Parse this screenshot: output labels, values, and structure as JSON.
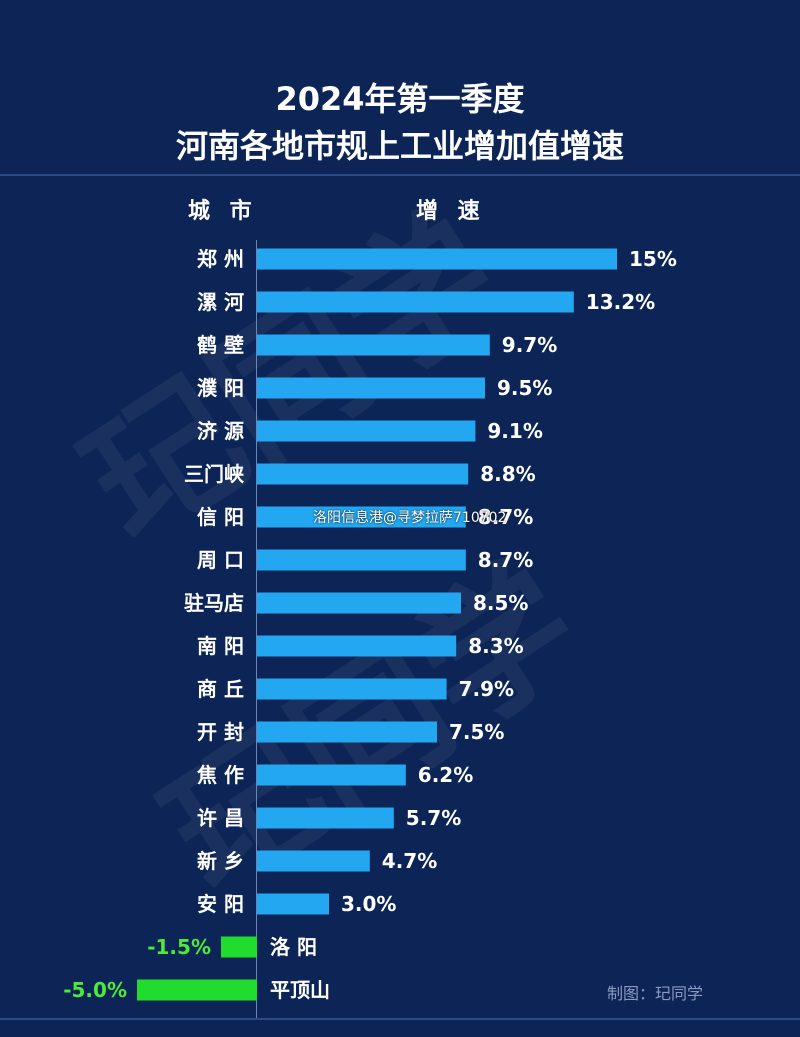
{
  "header": {
    "title_line1": "2024年第一季度",
    "title_line2": "河南各地市规上工业增加值增速"
  },
  "columns": {
    "city": "城 市",
    "growth": "增 速"
  },
  "watermark": "玘同学",
  "overlay_text": "洛阳信息港@寻梦拉萨710702",
  "footer": {
    "credit": "制图：玘同学"
  },
  "colors": {
    "background": "#0c2456",
    "positive_bar": "#22a7f0",
    "negative_bar": "#1fdc2f",
    "positive_label": "#ffffff",
    "negative_label": "#4bea3b"
  },
  "chart_data": {
    "type": "bar",
    "orientation": "horizontal",
    "categories": [
      "郑州",
      "漯河",
      "鹤壁",
      "濮阳",
      "济源",
      "三门峡",
      "信阳",
      "周口",
      "驻马店",
      "南阳",
      "商丘",
      "开封",
      "焦作",
      "许昌",
      "新乡",
      "安阳",
      "洛阳",
      "平顶山"
    ],
    "category_labels": [
      "郑 州",
      "漯 河",
      "鹤 壁",
      "濮 阳",
      "济 源",
      "三门峡",
      "信 阳",
      "周 口",
      "驻马店",
      "南 阳",
      "商 丘",
      "开 封",
      "焦 作",
      "许 昌",
      "新 乡",
      "安 阳",
      "洛 阳",
      "平顶山"
    ],
    "values": [
      15,
      13.2,
      9.7,
      9.5,
      9.1,
      8.8,
      8.7,
      8.7,
      8.5,
      8.3,
      7.9,
      7.5,
      6.2,
      5.7,
      4.7,
      3.0,
      -1.5,
      -5.0
    ],
    "value_labels": [
      "15%",
      "13.2%",
      "9.7%",
      "9.5%",
      "9.1%",
      "8.8%",
      "8.7%",
      "8.7%",
      "8.5%",
      "8.3%",
      "7.9%",
      "7.5%",
      "6.2%",
      "5.7%",
      "4.7%",
      "3.0%",
      "-1.5%",
      "-5.0%"
    ],
    "title": "2024年第一季度 河南各地市规上工业增加值增速",
    "xlabel": "增 速",
    "ylabel": "城 市",
    "xlim": [
      -5,
      15
    ],
    "grid": false
  }
}
